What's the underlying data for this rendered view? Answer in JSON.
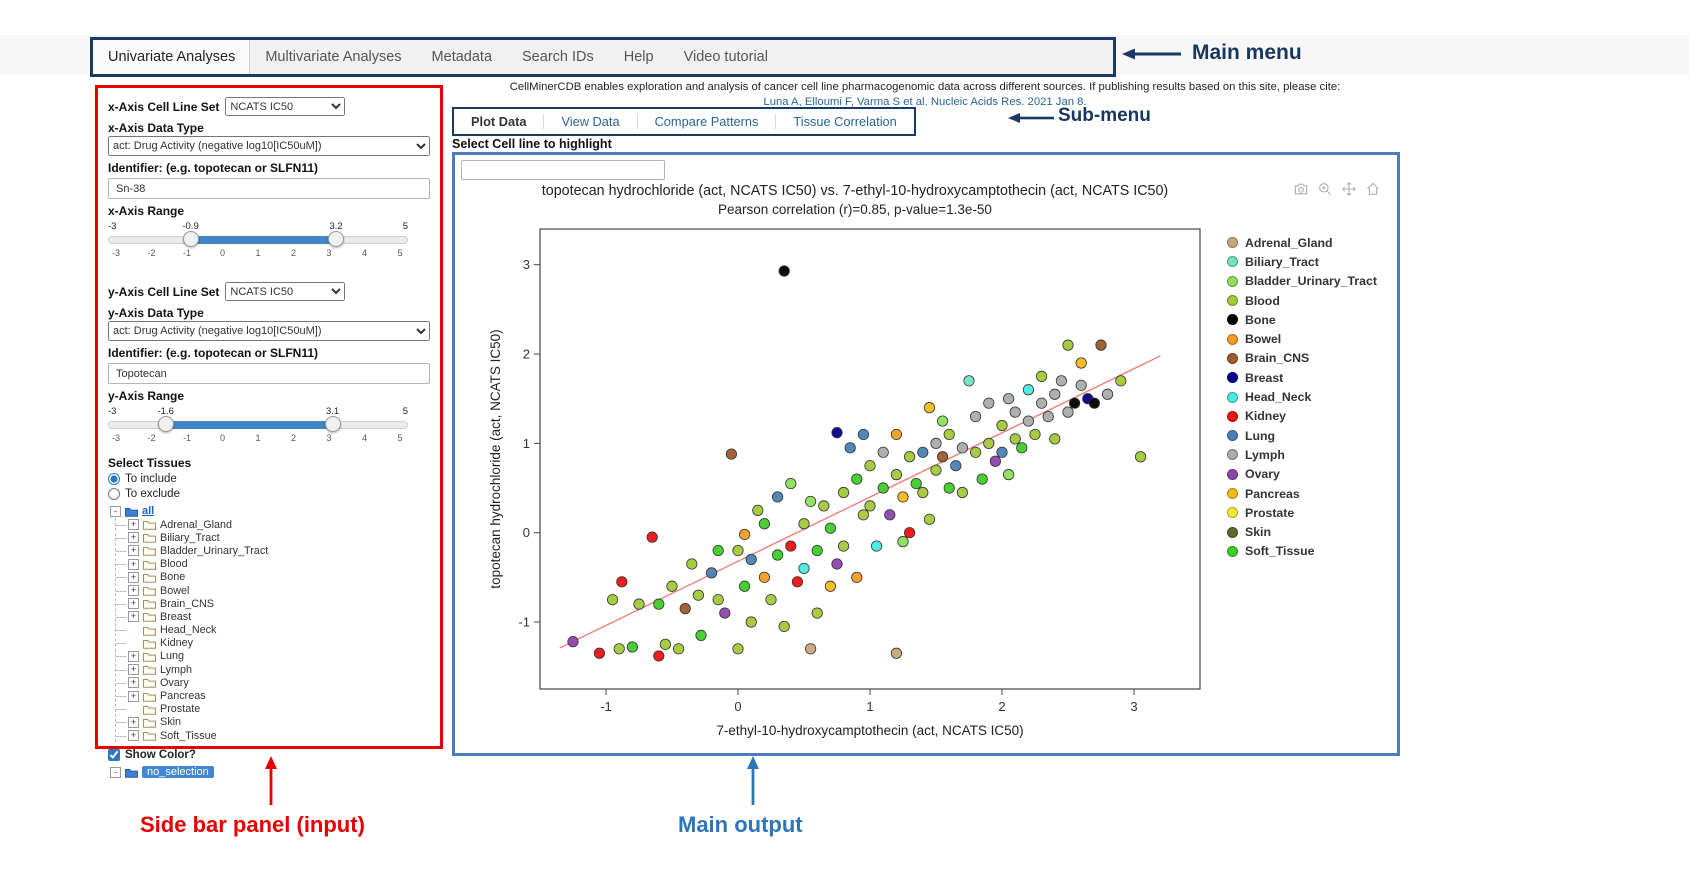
{
  "annotations": {
    "main_menu": "Main menu",
    "sub_menu": "Sub-menu",
    "sidebar": "Side bar panel (input)",
    "main_output": "Main output",
    "navy": "#17375e",
    "red": "#e60000",
    "blue": "#2e75b6"
  },
  "header": {
    "menu": [
      {
        "label": "Univariate Analyses",
        "active": true
      },
      {
        "label": "Multivariate Analyses",
        "active": false
      },
      {
        "label": "Metadata",
        "active": false
      },
      {
        "label": "Search IDs",
        "active": false
      },
      {
        "label": "Help",
        "active": false
      },
      {
        "label": "Video tutorial",
        "active": false
      }
    ]
  },
  "citation": {
    "line1": "CellMinerCDB enables exploration and analysis of cancer cell line pharmacogenomic data across different sources. If publishing results based on this site, please cite:",
    "link": "Luna A, Elloumi F, Varma S et al. Nucleic Acids Res. 2021 Jan 8."
  },
  "submenu": {
    "items": [
      "Plot Data",
      "View Data",
      "Compare Patterns",
      "Tissue Correlation"
    ]
  },
  "highlight": {
    "label": "Select Cell line to highlight",
    "value": ""
  },
  "sidebar": {
    "x_axis": {
      "cell_line_set_label": "x-Axis Cell Line Set",
      "cell_line_set_value": "NCATS IC50",
      "data_type_label": "x-Axis Data Type",
      "data_type_value": "act: Drug Activity (negative log10[IC50uM])",
      "identifier_label": "Identifier: (e.g. topotecan or SLFN11)",
      "identifier_value": "Sn-38",
      "range_label": "x-Axis Range",
      "range": {
        "min": -3,
        "max": 5,
        "low": -0.9,
        "high": 3.2,
        "ticks": [
          -3,
          -2,
          -1,
          0,
          1,
          2,
          3,
          4,
          5
        ]
      }
    },
    "y_axis": {
      "cell_line_set_label": "y-Axis Cell Line Set",
      "cell_line_set_value": "NCATS IC50",
      "data_type_label": "y-Axis Data Type",
      "data_type_value": "act: Drug Activity (negative log10[IC50uM])",
      "identifier_label": "Identifier: (e.g. topotecan or SLFN11)",
      "identifier_value": "Topotecan",
      "range_label": "y-Axis Range",
      "range": {
        "min": -3,
        "max": 5,
        "low": -1.6,
        "high": 3.1,
        "ticks": [
          -3,
          -2,
          -1,
          0,
          1,
          2,
          3,
          4,
          5
        ]
      }
    },
    "select_tissues_label": "Select Tissues",
    "include_option": "To include",
    "exclude_option": "To exclude",
    "tree_root": "all",
    "tissue_tree": [
      {
        "label": "Adrenal_Gland",
        "expandable": true
      },
      {
        "label": "Biliary_Tract",
        "expandable": true
      },
      {
        "label": "Bladder_Urinary_Tract",
        "expandable": true
      },
      {
        "label": "Blood",
        "expandable": true
      },
      {
        "label": "Bone",
        "expandable": true
      },
      {
        "label": "Bowel",
        "expandable": true
      },
      {
        "label": "Brain_CNS",
        "expandable": true
      },
      {
        "label": "Breast",
        "expandable": true
      },
      {
        "label": "Head_Neck",
        "expandable": false
      },
      {
        "label": "Kidney",
        "expandable": false
      },
      {
        "label": "Lung",
        "expandable": true
      },
      {
        "label": "Lymph",
        "expandable": true
      },
      {
        "label": "Ovary",
        "expandable": true
      },
      {
        "label": "Pancreas",
        "expandable": true
      },
      {
        "label": "Prostate",
        "expandable": false
      },
      {
        "label": "Skin",
        "expandable": true
      },
      {
        "label": "Soft_Tissue",
        "expandable": true
      }
    ],
    "show_color_label": "Show Color?",
    "show_color_checked": true,
    "no_selection_label": "no_selection"
  },
  "modebar": {
    "icons": [
      "camera-icon",
      "zoom-in-icon",
      "pan-icon",
      "reset-axes-icon"
    ]
  },
  "chart_data": {
    "type": "scatter",
    "title": "topotecan hydrochloride (act, NCATS IC50) vs. 7-ethyl-10-hydroxycamptothecin (act, NCATS IC50)",
    "subtitle": "Pearson correlation (r)=0.85, p-value=1.3e-50",
    "xlabel": "7-ethyl-10-hydroxycamptothecin (act, NCATS IC50)",
    "ylabel": "topotecan hydrochloride (act, NCATS IC50)",
    "xlim": [
      -1.5,
      3.5
    ],
    "ylim": [
      -1.75,
      3.4
    ],
    "xticks": [
      -1,
      0,
      1,
      2,
      3
    ],
    "yticks": [
      -1,
      0,
      1,
      2,
      3
    ],
    "grid": false,
    "legend_position": "right",
    "regression_line": {
      "x1": -1.35,
      "y1": -1.29,
      "x2": 3.2,
      "y2": 1.98,
      "color": "#f0807c"
    },
    "tissues": [
      {
        "name": "Adrenal_Gland",
        "color": "#C9A877"
      },
      {
        "name": "Biliary_Tract",
        "color": "#6FE3C4"
      },
      {
        "name": "Bladder_Urinary_Tract",
        "color": "#8CE05A"
      },
      {
        "name": "Blood",
        "color": "#A2C93A"
      },
      {
        "name": "Bone",
        "color": "#000000"
      },
      {
        "name": "Bowel",
        "color": "#F59B23"
      },
      {
        "name": "Brain_CNS",
        "color": "#9E5B2B"
      },
      {
        "name": "Breast",
        "color": "#00008B"
      },
      {
        "name": "Head_Neck",
        "color": "#49E9E2"
      },
      {
        "name": "Kidney",
        "color": "#EE1111"
      },
      {
        "name": "Lung",
        "color": "#4A7FB5"
      },
      {
        "name": "Lymph",
        "color": "#ABABAB"
      },
      {
        "name": "Ovary",
        "color": "#8E44AD"
      },
      {
        "name": "Pancreas",
        "color": "#F5B91A"
      },
      {
        "name": "Prostate",
        "color": "#F7E733"
      },
      {
        "name": "Skin",
        "color": "#5A6B2F"
      },
      {
        "name": "Soft_Tissue",
        "color": "#3ECC27"
      }
    ],
    "points": [
      [
        -1.25,
        -1.22,
        12
      ],
      [
        -1.05,
        -1.35,
        9
      ],
      [
        -0.95,
        -0.75,
        3
      ],
      [
        -0.9,
        -1.3,
        3
      ],
      [
        -0.88,
        -0.55,
        9
      ],
      [
        -0.8,
        -1.28,
        16
      ],
      [
        -0.75,
        -0.8,
        3
      ],
      [
        -0.65,
        -0.05,
        9
      ],
      [
        -0.6,
        -1.38,
        9
      ],
      [
        -0.6,
        -0.8,
        16
      ],
      [
        -0.55,
        -1.25,
        3
      ],
      [
        -0.5,
        -0.6,
        3
      ],
      [
        -0.45,
        -1.3,
        3
      ],
      [
        -0.4,
        -0.85,
        6
      ],
      [
        -0.35,
        -0.35,
        3
      ],
      [
        -0.3,
        -0.7,
        3
      ],
      [
        -0.28,
        -1.15,
        16
      ],
      [
        -0.2,
        -0.45,
        10
      ],
      [
        -0.15,
        -0.75,
        3
      ],
      [
        -0.15,
        -0.2,
        16
      ],
      [
        -0.1,
        -0.9,
        12
      ],
      [
        -0.05,
        0.88,
        6
      ],
      [
        0,
        -0.2,
        3
      ],
      [
        0,
        -1.3,
        3
      ],
      [
        0.05,
        -0.6,
        16
      ],
      [
        0.05,
        -0.02,
        5
      ],
      [
        0.1,
        -0.3,
        10
      ],
      [
        0.1,
        -1.0,
        3
      ],
      [
        0.15,
        0.25,
        3
      ],
      [
        0.2,
        -0.5,
        5
      ],
      [
        0.2,
        0.1,
        16
      ],
      [
        0.25,
        -0.75,
        3
      ],
      [
        0.3,
        -0.25,
        16
      ],
      [
        0.3,
        0.4,
        10
      ],
      [
        0.35,
        2.93,
        4
      ],
      [
        0.35,
        -1.05,
        3
      ],
      [
        0.4,
        -0.15,
        9
      ],
      [
        0.4,
        0.55,
        2
      ],
      [
        0.45,
        -0.55,
        9
      ],
      [
        0.5,
        -0.4,
        8
      ],
      [
        0.5,
        0.1,
        3
      ],
      [
        0.55,
        -1.3,
        0
      ],
      [
        0.55,
        0.35,
        2
      ],
      [
        0.6,
        -0.2,
        16
      ],
      [
        0.6,
        -0.9,
        3
      ],
      [
        0.65,
        0.3,
        3
      ],
      [
        0.7,
        -0.6,
        13
      ],
      [
        0.7,
        0.05,
        16
      ],
      [
        0.75,
        -0.35,
        12
      ],
      [
        0.75,
        1.12,
        7
      ],
      [
        0.8,
        0.45,
        3
      ],
      [
        0.8,
        -0.15,
        3
      ],
      [
        0.85,
        0.95,
        10
      ],
      [
        0.9,
        0.6,
        16
      ],
      [
        0.9,
        -0.5,
        5
      ],
      [
        0.95,
        1.1,
        10
      ],
      [
        0.95,
        0.2,
        3
      ],
      [
        1.0,
        0.3,
        3
      ],
      [
        1.0,
        0.75,
        3
      ],
      [
        1.05,
        -0.15,
        8
      ],
      [
        1.1,
        0.5,
        16
      ],
      [
        1.1,
        0.9,
        11
      ],
      [
        1.15,
        0.2,
        12
      ],
      [
        1.2,
        0.65,
        3
      ],
      [
        1.2,
        1.1,
        5
      ],
      [
        1.2,
        -1.35,
        0
      ],
      [
        1.25,
        0.4,
        13
      ],
      [
        1.25,
        -0.1,
        2
      ],
      [
        1.3,
        0.85,
        3
      ],
      [
        1.3,
        0.0,
        9
      ],
      [
        1.35,
        0.55,
        16
      ],
      [
        1.4,
        0.9,
        10
      ],
      [
        1.4,
        0.45,
        3
      ],
      [
        1.45,
        1.4,
        13
      ],
      [
        1.45,
        0.15,
        3
      ],
      [
        1.5,
        0.7,
        3
      ],
      [
        1.5,
        1.0,
        11
      ],
      [
        1.55,
        0.85,
        6
      ],
      [
        1.55,
        1.25,
        2
      ],
      [
        1.6,
        0.5,
        16
      ],
      [
        1.6,
        1.1,
        3
      ],
      [
        1.65,
        0.75,
        10
      ],
      [
        1.7,
        0.95,
        11
      ],
      [
        1.7,
        0.45,
        3
      ],
      [
        1.75,
        1.7,
        1
      ],
      [
        1.8,
        0.9,
        3
      ],
      [
        1.8,
        1.3,
        11
      ],
      [
        1.85,
        0.6,
        16
      ],
      [
        1.9,
        1.0,
        3
      ],
      [
        1.9,
        1.45,
        11
      ],
      [
        1.95,
        0.8,
        12
      ],
      [
        2.0,
        1.2,
        3
      ],
      [
        2.0,
        0.9,
        10
      ],
      [
        2.05,
        1.5,
        11
      ],
      [
        2.05,
        0.65,
        2
      ],
      [
        2.1,
        1.05,
        3
      ],
      [
        2.1,
        1.35,
        11
      ],
      [
        2.15,
        0.95,
        16
      ],
      [
        2.2,
        1.25,
        11
      ],
      [
        2.2,
        1.6,
        8
      ],
      [
        2.25,
        1.1,
        3
      ],
      [
        2.3,
        1.45,
        11
      ],
      [
        2.3,
        1.75,
        3
      ],
      [
        2.35,
        1.3,
        11
      ],
      [
        2.4,
        1.55,
        11
      ],
      [
        2.4,
        1.05,
        3
      ],
      [
        2.45,
        1.7,
        11
      ],
      [
        2.5,
        1.35,
        11
      ],
      [
        2.5,
        2.1,
        3
      ],
      [
        2.55,
        1.45,
        4
      ],
      [
        2.6,
        1.65,
        11
      ],
      [
        2.6,
        1.9,
        13
      ],
      [
        2.65,
        1.5,
        7
      ],
      [
        2.7,
        1.45,
        4
      ],
      [
        2.75,
        2.1,
        6
      ],
      [
        2.8,
        1.55,
        11
      ],
      [
        2.9,
        1.7,
        3
      ],
      [
        3.05,
        0.85,
        3
      ]
    ]
  }
}
